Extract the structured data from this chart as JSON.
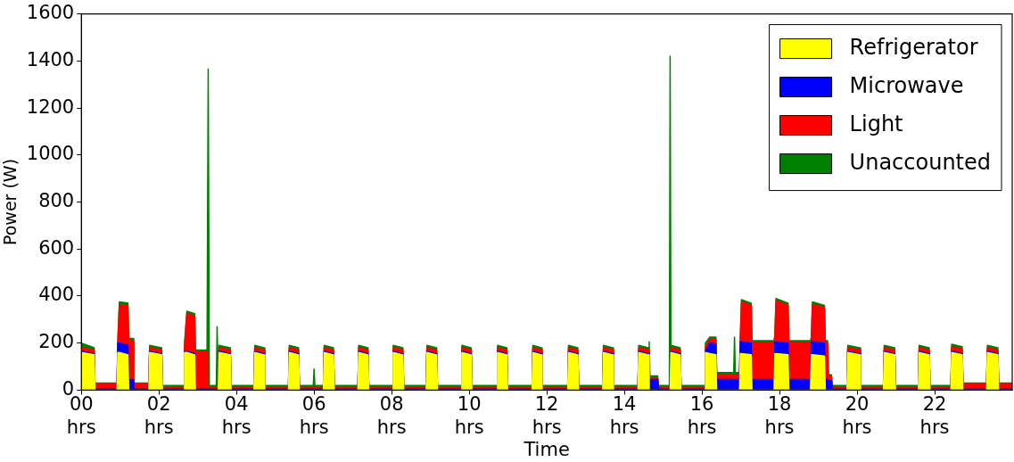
{
  "chart_data": {
    "type": "area",
    "stacked": true,
    "xlabel": "Time",
    "ylabel": "Power (W)",
    "legend": "top right",
    "grid": false,
    "xlim": [
      0,
      24
    ],
    "xticks": [
      {
        "value": 0,
        "label": "00\nhrs"
      },
      {
        "value": 2,
        "label": "02\nhrs"
      },
      {
        "value": 4,
        "label": "04\nhrs"
      },
      {
        "value": 6,
        "label": "06\nhrs"
      },
      {
        "value": 8,
        "label": "08\nhrs"
      },
      {
        "value": 10,
        "label": "10\nhrs"
      },
      {
        "value": 12,
        "label": "12\nhrs"
      },
      {
        "value": 14,
        "label": "14\nhrs"
      },
      {
        "value": 16,
        "label": "16\nhrs"
      },
      {
        "value": 18,
        "label": "18\nhrs"
      },
      {
        "value": 20,
        "label": "20\nhrs"
      },
      {
        "value": 22,
        "label": "22\nhrs"
      }
    ],
    "ylim": [
      0,
      1600
    ],
    "yticks": [
      0,
      200,
      400,
      600,
      800,
      1000,
      1200,
      1400,
      1600
    ],
    "x": [
      0,
      0.33,
      0.35,
      0.92,
      0.94,
      0.98,
      1.2,
      1.22,
      1.33,
      1.35,
      1.74,
      1.76,
      2.07,
      2.09,
      2.64,
      2.66,
      2.72,
      2.92,
      2.94,
      3.24,
      3.27,
      3.3,
      3.48,
      3.5,
      3.53,
      3.55,
      3.84,
      3.86,
      4.45,
      4.47,
      4.71,
      4.73,
      5.34,
      5.36,
      5.6,
      5.62,
      5.98,
      6.0,
      6.02,
      6.24,
      6.26,
      6.5,
      6.52,
      7.13,
      7.15,
      7.39,
      7.41,
      8.02,
      8.04,
      8.29,
      8.31,
      8.89,
      8.91,
      9.16,
      9.18,
      9.79,
      9.81,
      10.05,
      10.07,
      10.71,
      10.73,
      10.97,
      10.99,
      11.62,
      11.64,
      11.86,
      11.88,
      12.54,
      12.56,
      12.8,
      12.82,
      13.44,
      13.46,
      13.7,
      13.72,
      14.35,
      14.37,
      14.62,
      14.64,
      14.66,
      14.86,
      14.88,
      15.16,
      15.18,
      15.2,
      15.44,
      15.46,
      16.07,
      16.09,
      16.2,
      16.36,
      16.38,
      16.82,
      16.84,
      16.86,
      16.97,
      16.99,
      17.02,
      17.27,
      17.29,
      17.86,
      17.88,
      17.91,
      18.22,
      18.24,
      18.8,
      18.82,
      18.85,
      19.16,
      19.18,
      19.24,
      19.26,
      19.34,
      19.36,
      19.74,
      19.76,
      20.07,
      20.09,
      20.68,
      20.7,
      20.97,
      20.99,
      21.58,
      21.6,
      21.86,
      21.88,
      22.42,
      22.44,
      22.71,
      22.73,
      23.34,
      23.36,
      23.63,
      23.65,
      24
    ],
    "series": [
      {
        "name": "Refrigerator",
        "color": "#ffff00",
        "values": [
          160,
          150,
          0,
          0,
          160,
          160,
          150,
          0,
          0,
          0,
          0,
          160,
          150,
          0,
          0,
          160,
          160,
          150,
          0,
          0,
          0,
          0,
          0,
          0,
          0,
          160,
          150,
          0,
          0,
          160,
          150,
          0,
          0,
          160,
          150,
          0,
          0,
          0,
          0,
          0,
          160,
          150,
          0,
          0,
          160,
          150,
          0,
          0,
          160,
          150,
          0,
          0,
          160,
          150,
          0,
          0,
          160,
          150,
          0,
          0,
          160,
          150,
          0,
          0,
          160,
          150,
          0,
          0,
          160,
          150,
          0,
          0,
          160,
          150,
          0,
          0,
          160,
          150,
          0,
          0,
          0,
          0,
          0,
          0,
          160,
          150,
          0,
          0,
          160,
          155,
          150,
          0,
          0,
          0,
          0,
          0,
          155,
          155,
          150,
          0,
          0,
          155,
          155,
          150,
          0,
          0,
          150,
          150,
          145,
          0,
          0,
          0,
          0,
          0,
          0,
          160,
          150,
          0,
          0,
          160,
          150,
          0,
          0,
          160,
          150,
          0,
          0,
          160,
          150,
          0,
          0,
          160,
          150,
          0,
          0
        ]
      },
      {
        "name": "Microwave",
        "color": "#0000ff",
        "values": [
          5,
          5,
          5,
          5,
          40,
          40,
          40,
          45,
          45,
          5,
          5,
          5,
          5,
          5,
          5,
          5,
          5,
          5,
          5,
          5,
          5,
          5,
          5,
          5,
          5,
          5,
          5,
          5,
          5,
          5,
          5,
          5,
          5,
          5,
          5,
          5,
          5,
          5,
          5,
          5,
          5,
          5,
          5,
          5,
          5,
          5,
          5,
          5,
          5,
          5,
          5,
          5,
          5,
          5,
          5,
          5,
          5,
          5,
          5,
          5,
          5,
          5,
          5,
          5,
          5,
          5,
          5,
          5,
          5,
          5,
          5,
          5,
          5,
          5,
          5,
          5,
          5,
          5,
          5,
          45,
          45,
          5,
          5,
          5,
          5,
          5,
          5,
          5,
          5,
          45,
          45,
          45,
          45,
          45,
          45,
          45,
          50,
          50,
          50,
          45,
          45,
          50,
          50,
          50,
          45,
          45,
          55,
          55,
          55,
          45,
          45,
          40,
          40,
          5,
          5,
          5,
          5,
          5,
          5,
          5,
          5,
          5,
          5,
          5,
          5,
          5,
          5,
          5,
          5,
          5,
          5,
          5,
          5,
          5,
          5
        ]
      },
      {
        "name": "Light",
        "color": "#ff0000",
        "values": [
          15,
          15,
          20,
          20,
          0,
          160,
          170,
          165,
          165,
          20,
          20,
          15,
          15,
          5,
          5,
          20,
          160,
          160,
          160,
          160,
          10,
          5,
          5,
          5,
          5,
          15,
          15,
          5,
          5,
          15,
          15,
          5,
          5,
          15,
          15,
          5,
          5,
          5,
          5,
          5,
          15,
          15,
          5,
          5,
          15,
          15,
          5,
          5,
          15,
          15,
          5,
          5,
          15,
          15,
          5,
          5,
          15,
          15,
          5,
          5,
          15,
          15,
          5,
          5,
          15,
          15,
          5,
          5,
          15,
          15,
          5,
          5,
          15,
          15,
          5,
          5,
          15,
          15,
          5,
          5,
          5,
          5,
          5,
          5,
          15,
          15,
          5,
          5,
          20,
          15,
          20,
          20,
          20,
          20,
          20,
          20,
          10,
          170,
          160,
          155,
          155,
          20,
          175,
          160,
          155,
          155,
          10,
          160,
          150,
          155,
          155,
          20,
          20,
          5,
          5,
          15,
          15,
          5,
          5,
          15,
          15,
          5,
          5,
          15,
          15,
          5,
          5,
          20,
          20,
          20,
          20,
          15,
          15,
          20,
          20
        ]
      },
      {
        "name": "Unaccounted",
        "color": "#008000",
        "values": [
          20,
          10,
          5,
          5,
          15,
          15,
          10,
          10,
          10,
          5,
          5,
          10,
          10,
          10,
          10,
          15,
          10,
          10,
          5,
          5,
          1350,
          10,
          10,
          260,
          10,
          10,
          10,
          10,
          10,
          10,
          10,
          10,
          10,
          10,
          10,
          10,
          10,
          80,
          10,
          10,
          10,
          10,
          10,
          10,
          10,
          10,
          10,
          10,
          10,
          10,
          10,
          10,
          10,
          10,
          10,
          10,
          10,
          10,
          10,
          10,
          10,
          10,
          10,
          10,
          10,
          10,
          10,
          10,
          10,
          10,
          10,
          10,
          10,
          10,
          10,
          10,
          10,
          10,
          195,
          10,
          10,
          10,
          10,
          1410,
          10,
          10,
          10,
          10,
          15,
          10,
          10,
          10,
          10,
          160,
          10,
          10,
          15,
          10,
          10,
          10,
          10,
          10,
          10,
          10,
          10,
          10,
          10,
          10,
          10,
          10,
          10,
          5,
          5,
          10,
          10,
          10,
          10,
          10,
          10,
          10,
          10,
          10,
          10,
          10,
          10,
          10,
          10,
          10,
          10,
          5,
          5,
          10,
          10,
          5,
          5
        ]
      }
    ]
  }
}
